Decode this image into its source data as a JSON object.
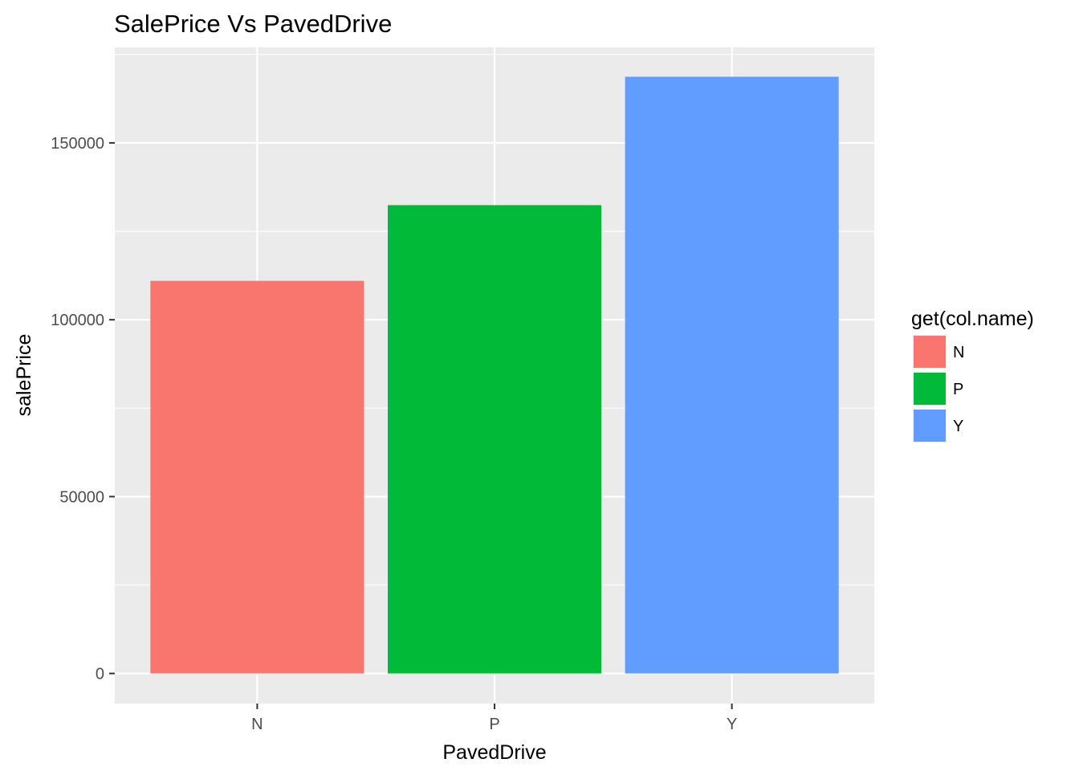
{
  "chart_data": {
    "type": "bar",
    "title": "SalePrice Vs PavedDrive",
    "xlabel": "PavedDrive",
    "ylabel": "salePrice",
    "categories": [
      "N",
      "P",
      "Y"
    ],
    "values": [
      111000,
      132400,
      168700
    ],
    "colors": [
      "#F8766D",
      "#00BA38",
      "#619CFF"
    ],
    "y_ticks": [
      0,
      50000,
      100000,
      150000
    ],
    "ylim": [
      -8500,
      177000
    ],
    "grid": true,
    "panel_background": "#EBEBEB",
    "grid_color": "#FFFFFF",
    "legend": {
      "title": "get(col.name)",
      "placement": "right",
      "entries": [
        "N",
        "P",
        "Y"
      ]
    }
  }
}
